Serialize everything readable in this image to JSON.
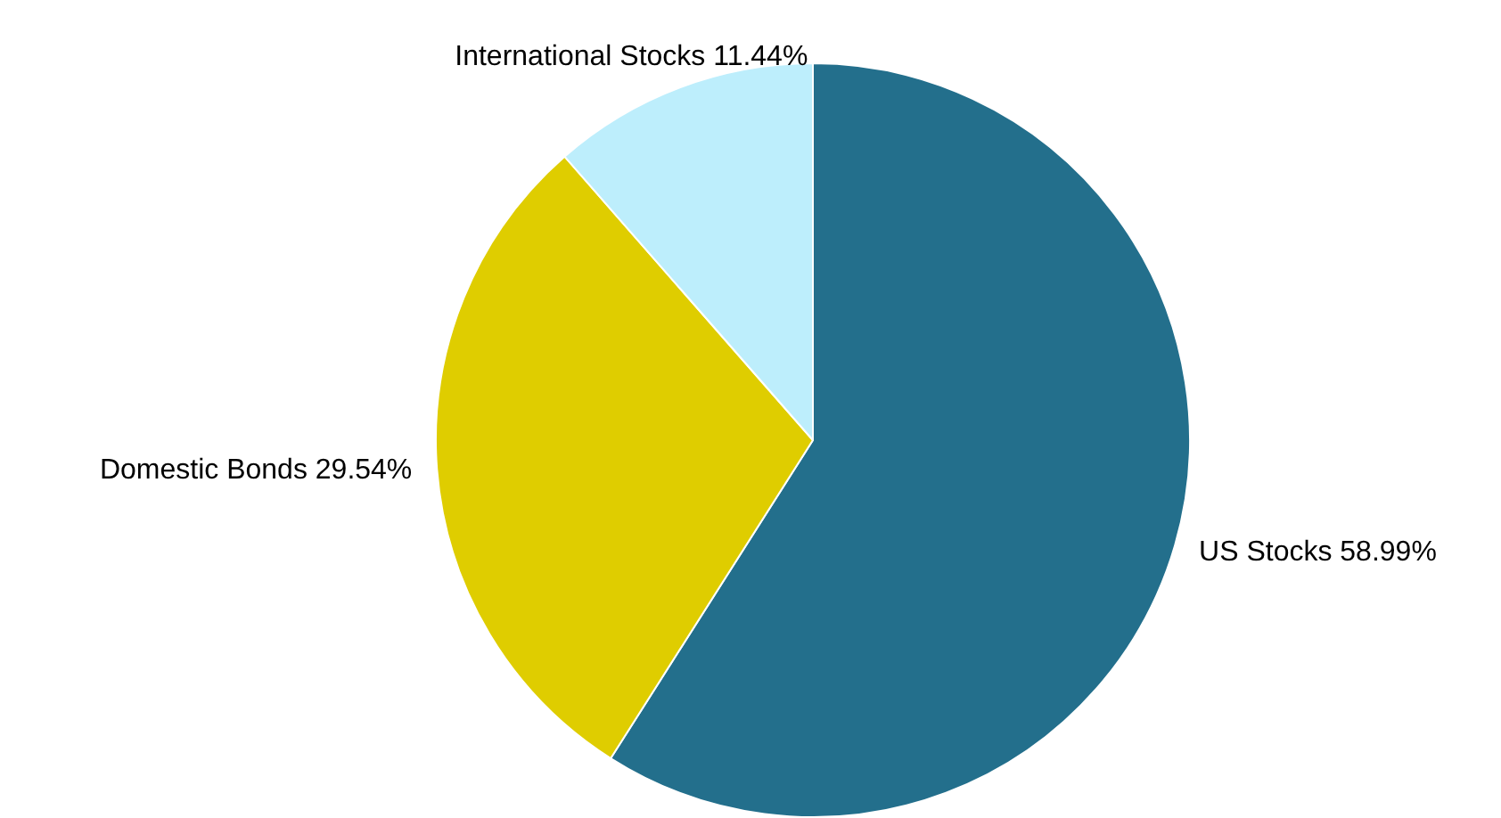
{
  "chart_data": {
    "type": "pie",
    "categories": [
      "US Stocks",
      "Domestic Bonds",
      "International Stocks"
    ],
    "values": [
      58.99,
      29.54,
      11.44
    ],
    "colors": [
      "#236f8c",
      "#dfcd00",
      "#bdeefc"
    ],
    "value_labels": [
      "58.99%",
      "29.54%",
      "11.44%"
    ],
    "legend": false
  }
}
